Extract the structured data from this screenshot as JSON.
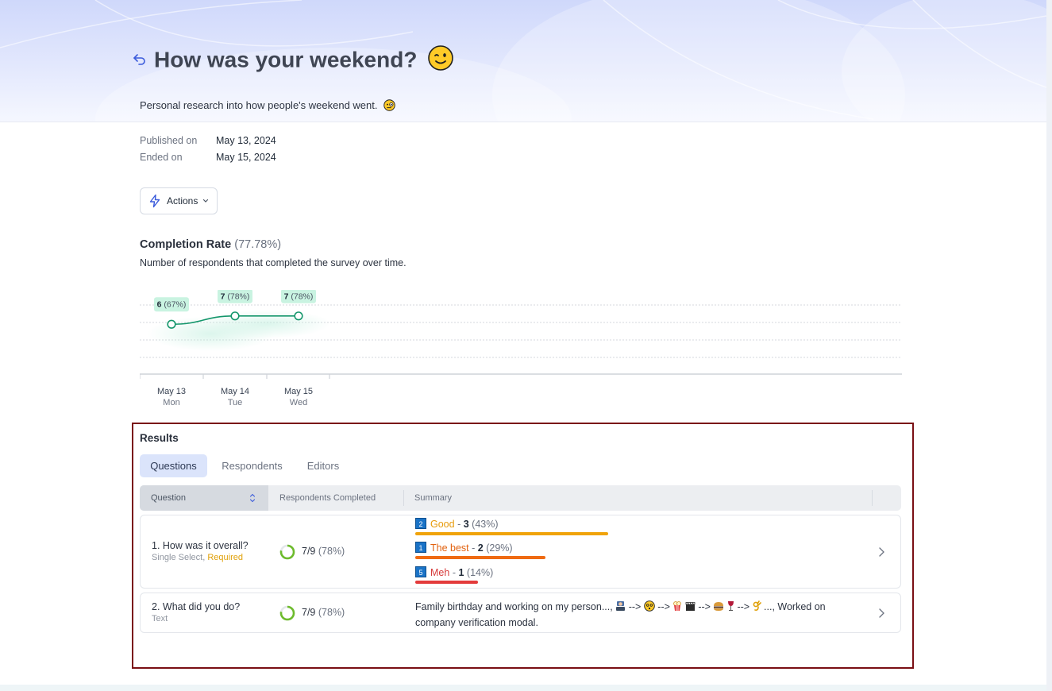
{
  "header": {
    "title": "How was your weekend?",
    "title_emoji": "winking-face",
    "description": "Personal research into how people's weekend went.",
    "description_emoji": "face-with-monocle"
  },
  "meta": {
    "published_label": "Published on",
    "published_value": "May 13, 2024",
    "ended_label": "Ended on",
    "ended_value": "May 15, 2024"
  },
  "actions": {
    "label": "Actions"
  },
  "completion": {
    "title": "Completion Rate",
    "rate": "(77.78%)",
    "description": "Number of respondents that completed the survey over time."
  },
  "chart_data": {
    "type": "line",
    "x": [
      {
        "date": "May 13",
        "day": "Mon"
      },
      {
        "date": "May 14",
        "day": "Tue"
      },
      {
        "date": "May 15",
        "day": "Wed"
      }
    ],
    "series": [
      {
        "values": [
          6,
          7,
          7
        ],
        "labels": [
          {
            "count": "6",
            "pct": "(67%)"
          },
          {
            "count": "7",
            "pct": "(78%)"
          },
          {
            "count": "7",
            "pct": "(78%)"
          }
        ]
      }
    ],
    "ylim": [
      0,
      9
    ],
    "grid": true,
    "color": "#14966b"
  },
  "results": {
    "title": "Results",
    "tabs": [
      {
        "label": "Questions",
        "active": true
      },
      {
        "label": "Respondents",
        "active": false
      },
      {
        "label": "Editors",
        "active": false
      }
    ],
    "columns": {
      "question": "Question",
      "completed": "Respondents Completed",
      "summary": "Summary"
    },
    "rows": [
      {
        "title": "1. How was it overall?",
        "type": "Single Select,",
        "required": "Required",
        "completed": "7/9",
        "completed_pct": "(78%)",
        "completed_fraction": 0.78,
        "options": [
          {
            "rank": "2",
            "label": "Good",
            "sep": "-",
            "count": "3",
            "pct": "(43%)",
            "share": 0.43,
            "color": "#e79b0b",
            "bar_color": "#f0a30a"
          },
          {
            "rank": "1",
            "label": "The best",
            "sep": "-",
            "count": "2",
            "pct": "(29%)",
            "share": 0.29,
            "color": "#e2620f",
            "bar_color": "#ef6a12"
          },
          {
            "rank": "5",
            "label": "Meh",
            "sep": "-",
            "count": "1",
            "pct": "(14%)",
            "share": 0.14,
            "color": "#d63a3a",
            "bar_color": "#e33b3b"
          }
        ]
      },
      {
        "title": "2. What did you do?",
        "type": "Text",
        "completed": "7/9",
        "completed_pct": "(78%)",
        "completed_fraction": 0.78,
        "summary_part1": "Family birthday and working on my person...,",
        "summary_part2": "..., Worked on company verification modal.",
        "arrow": "-->"
      }
    ]
  },
  "colors": {
    "accent": "#3b5bdb",
    "line": "#14966b",
    "label_bg": "#c9f3e1",
    "ring": "#6dbb2c",
    "required": "#e0a10a",
    "frame": "#7a0f14"
  }
}
